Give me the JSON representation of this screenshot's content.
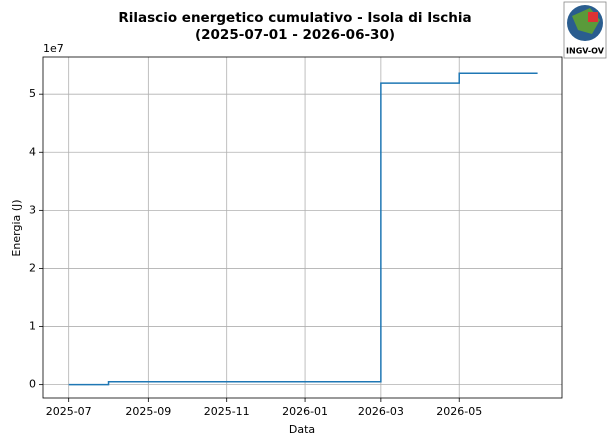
{
  "chart_data": {
    "type": "step",
    "title": "Rilascio energetico cumulativo - Isola di Ischia",
    "subtitle": "(2025-07-01 - 2026-06-30)",
    "logo_text": "INGV-OV",
    "xlabel": "Data",
    "ylabel": "Energia (J)",
    "y_offset_label": "1e7",
    "x": [
      "2025-07",
      "2025-08",
      "2026-03",
      "2026-05",
      "2026-07"
    ],
    "values": [
      0,
      500000,
      51900000,
      53600000,
      53600000
    ],
    "color": "#1f77b4",
    "xlim": [
      "2025-06-11",
      "2026-07-20"
    ],
    "xticks": [
      "2025-07",
      "2025-09",
      "2025-11",
      "2026-01",
      "2026-03",
      "2026-05"
    ],
    "ylim": [
      -2300000,
      56400000
    ],
    "yticks": [
      0,
      {
        "value": 10000000,
        "label": "1"
      },
      {
        "value": 20000000,
        "label": "2"
      },
      {
        "value": 30000000,
        "label": "3"
      },
      {
        "value": 40000000,
        "label": "4"
      },
      {
        "value": 50000000,
        "label": "5"
      }
    ],
    "grid": true
  }
}
